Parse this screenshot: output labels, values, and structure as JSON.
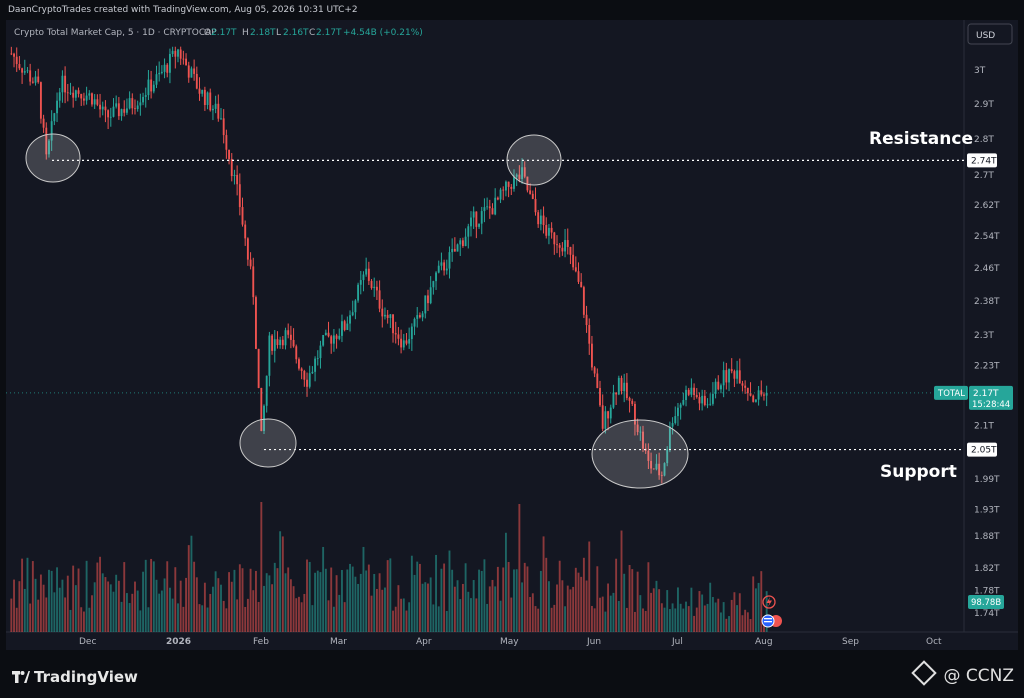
{
  "header": {
    "credit": "DaanCryptoTrades created with TradingView.com, Aug 05, 2026 10:31 UTC+2"
  },
  "legend": {
    "symbol": "Crypto Total Market Cap, 5 · 1D · CRYPTOCAP",
    "o_label": "O",
    "o_value": "2.17T",
    "h_label": "H",
    "h_value": "2.18T",
    "l_label": "L",
    "l_value": "2.16T",
    "c_label": "C",
    "c_value": "2.17T",
    "change": "+4.54B (+0.21%)"
  },
  "currency_button": "USD",
  "annotations": {
    "resistance": "Resistance",
    "support": "Support"
  },
  "price_badges": {
    "resistance": "2.74T",
    "support": "2.05T",
    "symbol_tag": "TOTAL",
    "last_price": "2.17T",
    "countdown": "15:28:44",
    "volume": "98.78B"
  },
  "footer": {
    "brand": "TradingView",
    "watermark": "@ CCNZ"
  },
  "colors": {
    "up": "#26a69a",
    "down": "#ef5350",
    "background": "#141722",
    "level_line": "#ffffff"
  },
  "chart_data": {
    "type": "candlestick",
    "symbol": "TOTAL",
    "y_scale": "log",
    "y_ticks": [
      "3T",
      "2.9T",
      "2.8T",
      "2.7T",
      "2.62T",
      "2.54T",
      "2.46T",
      "2.38T",
      "2.3T",
      "2.23T",
      "2.1T",
      "1.99T",
      "1.93T",
      "1.88T",
      "1.82T",
      "1.78T",
      "1.74T"
    ],
    "y_tick_values": [
      3.0,
      2.9,
      2.8,
      2.7,
      2.62,
      2.54,
      2.46,
      2.38,
      2.3,
      2.23,
      2.1,
      1.99,
      1.93,
      1.88,
      1.82,
      1.78,
      1.74
    ],
    "x_ticks": [
      "Dec",
      "2026",
      "Feb",
      "Mar",
      "Apr",
      "May",
      "Jun",
      "Jul",
      "Aug",
      "Sep",
      "Oct"
    ],
    "levels": {
      "resistance": 2.74,
      "support": 2.05
    },
    "last_close": 2.17,
    "path": [
      {
        "i": 0,
        "p": 3.05
      },
      {
        "i": 10,
        "p": 2.95
      },
      {
        "i": 13,
        "p": 2.74
      },
      {
        "i": 18,
        "p": 2.96
      },
      {
        "i": 30,
        "p": 2.92
      },
      {
        "i": 35,
        "p": 2.86
      },
      {
        "i": 45,
        "p": 2.9
      },
      {
        "i": 55,
        "p": 2.98
      },
      {
        "i": 62,
        "p": 3.06
      },
      {
        "i": 70,
        "p": 2.94
      },
      {
        "i": 78,
        "p": 2.86
      },
      {
        "i": 85,
        "p": 2.62
      },
      {
        "i": 90,
        "p": 2.4
      },
      {
        "i": 93,
        "p": 2.07
      },
      {
        "i": 96,
        "p": 2.28
      },
      {
        "i": 102,
        "p": 2.3
      },
      {
        "i": 110,
        "p": 2.2
      },
      {
        "i": 116,
        "p": 2.28
      },
      {
        "i": 124,
        "p": 2.32
      },
      {
        "i": 132,
        "p": 2.45
      },
      {
        "i": 138,
        "p": 2.36
      },
      {
        "i": 146,
        "p": 2.28
      },
      {
        "i": 152,
        "p": 2.34
      },
      {
        "i": 158,
        "p": 2.44
      },
      {
        "i": 165,
        "p": 2.5
      },
      {
        "i": 172,
        "p": 2.58
      },
      {
        "i": 180,
        "p": 2.62
      },
      {
        "i": 186,
        "p": 2.68
      },
      {
        "i": 190,
        "p": 2.7
      },
      {
        "i": 195,
        "p": 2.6
      },
      {
        "i": 200,
        "p": 2.54
      },
      {
        "i": 206,
        "p": 2.52
      },
      {
        "i": 212,
        "p": 2.4
      },
      {
        "i": 217,
        "p": 2.2
      },
      {
        "i": 220,
        "p": 2.1
      },
      {
        "i": 226,
        "p": 2.2
      },
      {
        "i": 232,
        "p": 2.12
      },
      {
        "i": 237,
        "p": 2.02
      },
      {
        "i": 242,
        "p": 2.0
      },
      {
        "i": 246,
        "p": 2.12
      },
      {
        "i": 252,
        "p": 2.18
      },
      {
        "i": 258,
        "p": 2.14
      },
      {
        "i": 264,
        "p": 2.2
      },
      {
        "i": 270,
        "p": 2.22
      },
      {
        "i": 276,
        "p": 2.16
      },
      {
        "i": 281,
        "p": 2.17
      }
    ],
    "volume_seed": 7
  }
}
